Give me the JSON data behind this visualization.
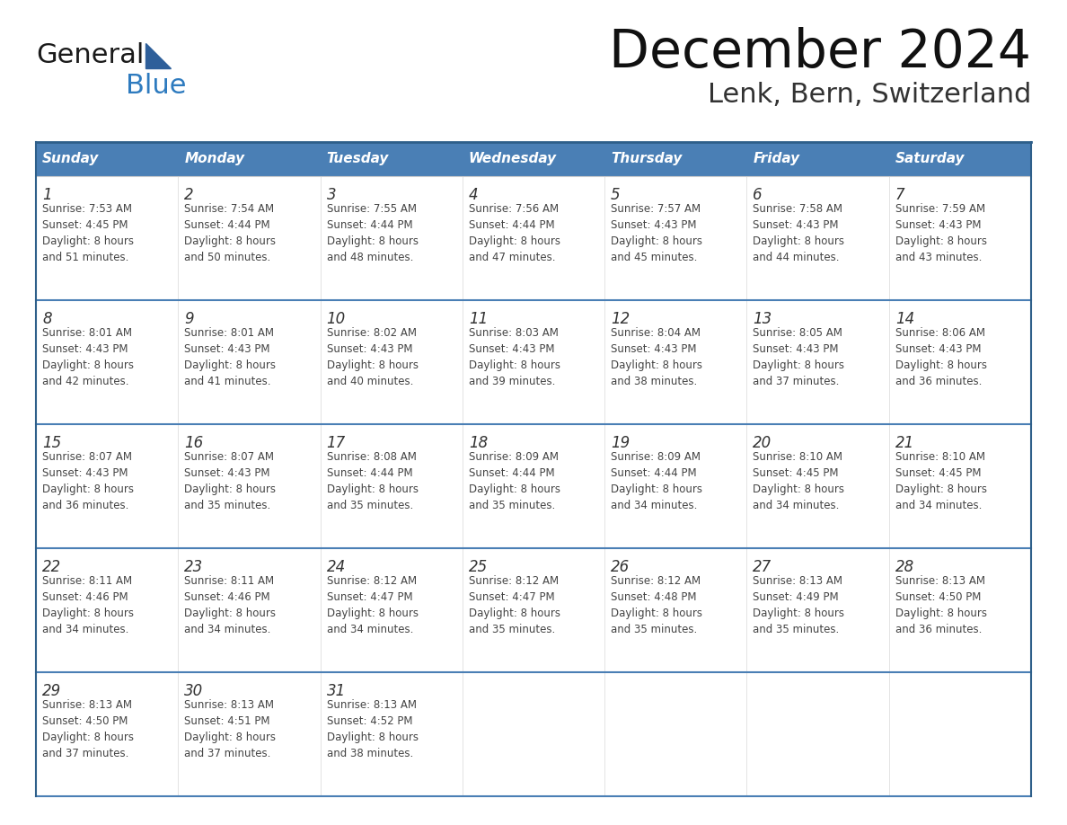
{
  "title": "December 2024",
  "subtitle": "Lenk, Bern, Switzerland",
  "header_color": "#4a7fb5",
  "header_text_color": "#ffffff",
  "cell_bg_color": "#ffffff",
  "cell_alt_bg": "#f0f4f8",
  "text_color": "#444444",
  "border_color": "#2e5f8a",
  "row_line_color": "#4a7fb5",
  "days_of_week": [
    "Sunday",
    "Monday",
    "Tuesday",
    "Wednesday",
    "Thursday",
    "Friday",
    "Saturday"
  ],
  "calendar": [
    [
      {
        "day": 1,
        "sunrise": "7:53 AM",
        "sunset": "4:45 PM",
        "daylight": "8 hours and 51 minutes."
      },
      {
        "day": 2,
        "sunrise": "7:54 AM",
        "sunset": "4:44 PM",
        "daylight": "8 hours and 50 minutes."
      },
      {
        "day": 3,
        "sunrise": "7:55 AM",
        "sunset": "4:44 PM",
        "daylight": "8 hours and 48 minutes."
      },
      {
        "day": 4,
        "sunrise": "7:56 AM",
        "sunset": "4:44 PM",
        "daylight": "8 hours and 47 minutes."
      },
      {
        "day": 5,
        "sunrise": "7:57 AM",
        "sunset": "4:43 PM",
        "daylight": "8 hours and 45 minutes."
      },
      {
        "day": 6,
        "sunrise": "7:58 AM",
        "sunset": "4:43 PM",
        "daylight": "8 hours and 44 minutes."
      },
      {
        "day": 7,
        "sunrise": "7:59 AM",
        "sunset": "4:43 PM",
        "daylight": "8 hours and 43 minutes."
      }
    ],
    [
      {
        "day": 8,
        "sunrise": "8:01 AM",
        "sunset": "4:43 PM",
        "daylight": "8 hours and 42 minutes."
      },
      {
        "day": 9,
        "sunrise": "8:01 AM",
        "sunset": "4:43 PM",
        "daylight": "8 hours and 41 minutes."
      },
      {
        "day": 10,
        "sunrise": "8:02 AM",
        "sunset": "4:43 PM",
        "daylight": "8 hours and 40 minutes."
      },
      {
        "day": 11,
        "sunrise": "8:03 AM",
        "sunset": "4:43 PM",
        "daylight": "8 hours and 39 minutes."
      },
      {
        "day": 12,
        "sunrise": "8:04 AM",
        "sunset": "4:43 PM",
        "daylight": "8 hours and 38 minutes."
      },
      {
        "day": 13,
        "sunrise": "8:05 AM",
        "sunset": "4:43 PM",
        "daylight": "8 hours and 37 minutes."
      },
      {
        "day": 14,
        "sunrise": "8:06 AM",
        "sunset": "4:43 PM",
        "daylight": "8 hours and 36 minutes."
      }
    ],
    [
      {
        "day": 15,
        "sunrise": "8:07 AM",
        "sunset": "4:43 PM",
        "daylight": "8 hours and 36 minutes."
      },
      {
        "day": 16,
        "sunrise": "8:07 AM",
        "sunset": "4:43 PM",
        "daylight": "8 hours and 35 minutes."
      },
      {
        "day": 17,
        "sunrise": "8:08 AM",
        "sunset": "4:44 PM",
        "daylight": "8 hours and 35 minutes."
      },
      {
        "day": 18,
        "sunrise": "8:09 AM",
        "sunset": "4:44 PM",
        "daylight": "8 hours and 35 minutes."
      },
      {
        "day": 19,
        "sunrise": "8:09 AM",
        "sunset": "4:44 PM",
        "daylight": "8 hours and 34 minutes."
      },
      {
        "day": 20,
        "sunrise": "8:10 AM",
        "sunset": "4:45 PM",
        "daylight": "8 hours and 34 minutes."
      },
      {
        "day": 21,
        "sunrise": "8:10 AM",
        "sunset": "4:45 PM",
        "daylight": "8 hours and 34 minutes."
      }
    ],
    [
      {
        "day": 22,
        "sunrise": "8:11 AM",
        "sunset": "4:46 PM",
        "daylight": "8 hours and 34 minutes."
      },
      {
        "day": 23,
        "sunrise": "8:11 AM",
        "sunset": "4:46 PM",
        "daylight": "8 hours and 34 minutes."
      },
      {
        "day": 24,
        "sunrise": "8:12 AM",
        "sunset": "4:47 PM",
        "daylight": "8 hours and 34 minutes."
      },
      {
        "day": 25,
        "sunrise": "8:12 AM",
        "sunset": "4:47 PM",
        "daylight": "8 hours and 35 minutes."
      },
      {
        "day": 26,
        "sunrise": "8:12 AM",
        "sunset": "4:48 PM",
        "daylight": "8 hours and 35 minutes."
      },
      {
        "day": 27,
        "sunrise": "8:13 AM",
        "sunset": "4:49 PM",
        "daylight": "8 hours and 35 minutes."
      },
      {
        "day": 28,
        "sunrise": "8:13 AM",
        "sunset": "4:50 PM",
        "daylight": "8 hours and 36 minutes."
      }
    ],
    [
      {
        "day": 29,
        "sunrise": "8:13 AM",
        "sunset": "4:50 PM",
        "daylight": "8 hours and 37 minutes."
      },
      {
        "day": 30,
        "sunrise": "8:13 AM",
        "sunset": "4:51 PM",
        "daylight": "8 hours and 37 minutes."
      },
      {
        "day": 31,
        "sunrise": "8:13 AM",
        "sunset": "4:52 PM",
        "daylight": "8 hours and 38 minutes."
      },
      null,
      null,
      null,
      null
    ]
  ],
  "logo_text1": "General",
  "logo_text2": "Blue",
  "logo_color1": "#1a1a1a",
  "logo_color2": "#2e7bbf",
  "logo_triangle_color": "#2e5f9a"
}
